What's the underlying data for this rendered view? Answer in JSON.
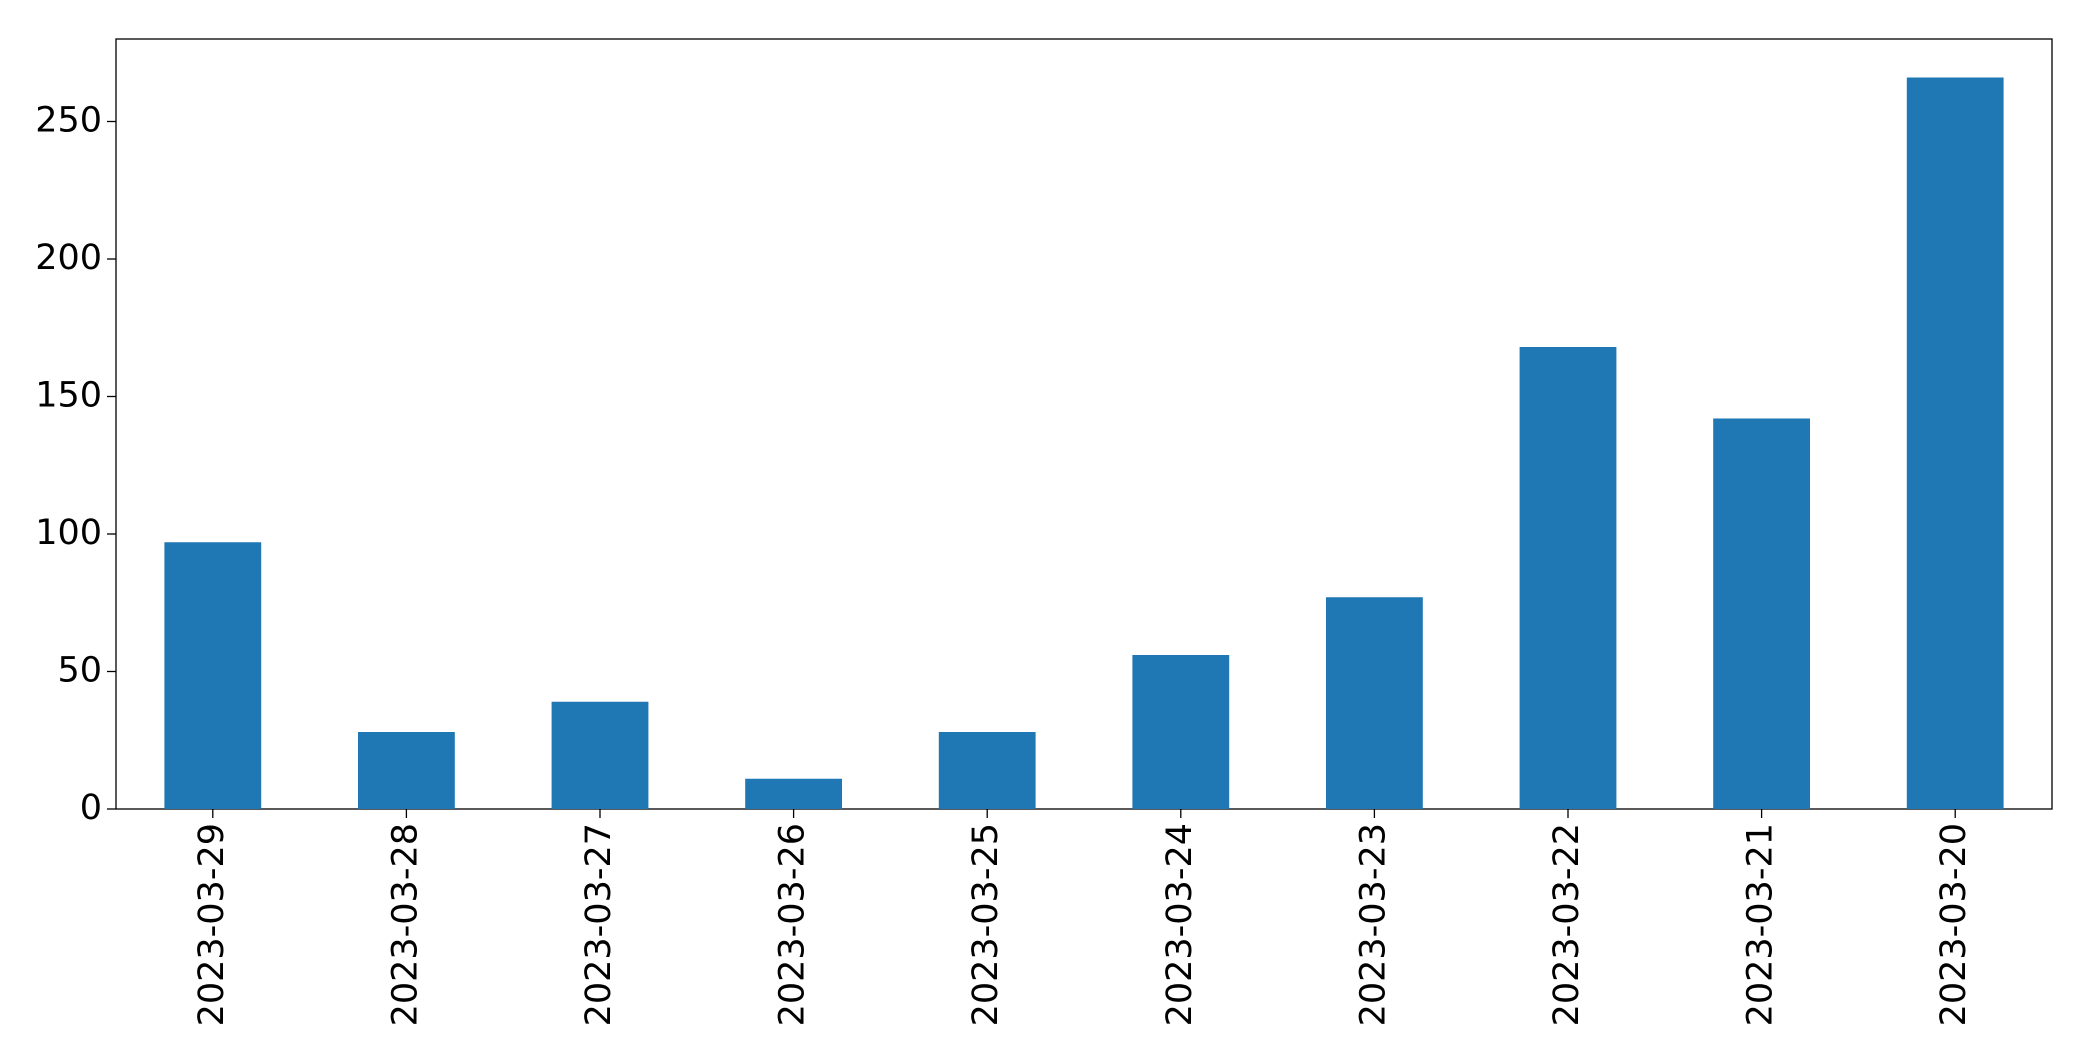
{
  "chart_data": {
    "type": "bar",
    "categories": [
      "2023-03-29",
      "2023-03-28",
      "2023-03-27",
      "2023-03-26",
      "2023-03-25",
      "2023-03-24",
      "2023-03-23",
      "2023-03-22",
      "2023-03-21",
      "2023-03-20"
    ],
    "values": [
      97,
      28,
      39,
      11,
      28,
      56,
      77,
      168,
      142,
      266
    ],
    "color": "#1f77b4",
    "ylim": [
      0,
      280
    ],
    "yticks": [
      0,
      50,
      100,
      150,
      200,
      250
    ],
    "grid": false
  }
}
